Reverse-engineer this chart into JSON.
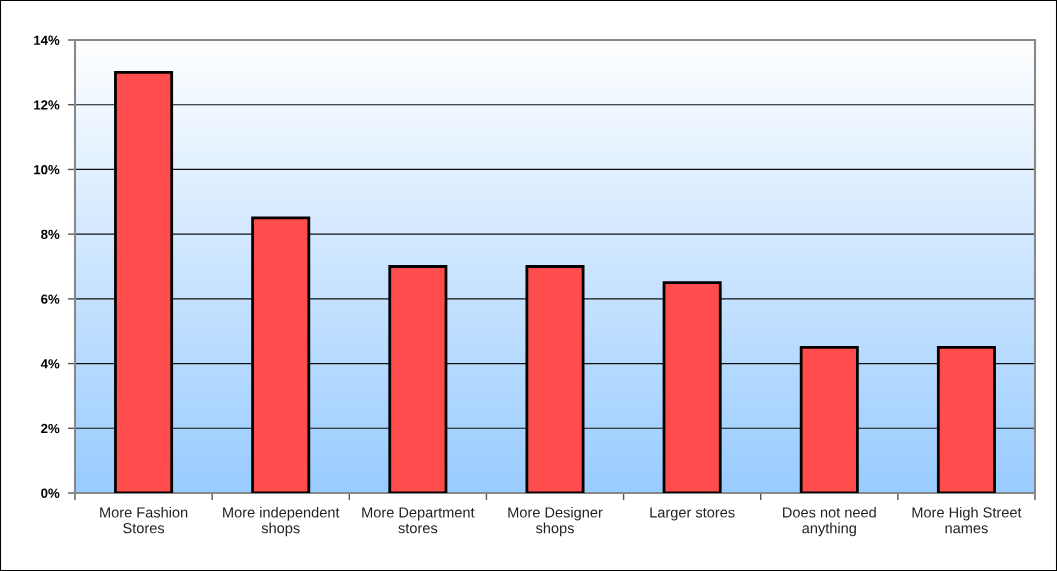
{
  "chart_data": {
    "type": "bar",
    "categories": [
      "More Fashion\nStores",
      "More independent\nshops",
      "More Department\nstores",
      "More Designer\nshops",
      "Larger stores",
      "Does not need\nanything",
      "More High Street\nnames"
    ],
    "values": [
      13,
      8.5,
      7,
      7,
      6.5,
      4.5,
      4.5
    ],
    "color": "#ff4d4d",
    "ylim": [
      0,
      14
    ],
    "yticks": [
      {
        "value": 0,
        "label": "0%"
      },
      {
        "value": 2,
        "label": "2%"
      },
      {
        "value": 4,
        "label": "4%"
      },
      {
        "value": 6,
        "label": "6%"
      },
      {
        "value": 8,
        "label": "8%"
      },
      {
        "value": 10,
        "label": "10%"
      },
      {
        "value": 12,
        "label": "12%"
      },
      {
        "value": 14,
        "label": "14%"
      }
    ],
    "grid": "y"
  }
}
